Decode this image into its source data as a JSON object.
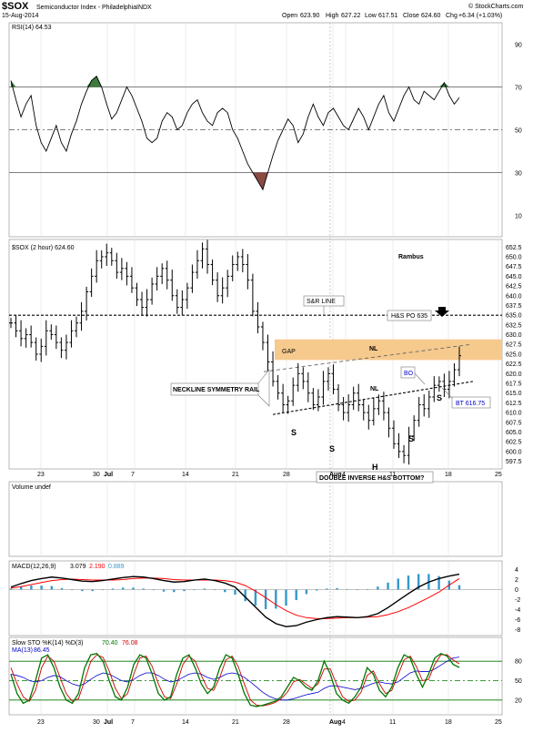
{
  "header": {
    "symbol": "$SOX",
    "name": "Semiconductor Index - Philadelphia",
    "exchange": "INDX",
    "date": "15-Aug-2014",
    "open_label": "Open",
    "open": "623.90",
    "high_label": "High",
    "high": "627.22",
    "low_label": "Low",
    "low": "617.51",
    "close_label": "Close",
    "close": "624.60",
    "chg_label": "Chg",
    "chg": "+6.34 (+1.03%)",
    "brand": "© StockCharts.com"
  },
  "colors": {
    "price": "#000000",
    "rsi_over": "#3d7a3d",
    "rsi_under": "#8a4a44",
    "gap": "#f6c98d",
    "volume": "#0000cc",
    "macd_hist": "#3399cc",
    "macd_signal": "#ff0000",
    "sto_k": "#007700",
    "sto_d": "#cc0000",
    "sto_ma": "#0000cc"
  },
  "chart_data": [
    {
      "type": "line",
      "title": "RSI(14) 64.53",
      "ylim": [
        0,
        100
      ],
      "yticks": [
        "90",
        "70",
        "50",
        "30",
        "10"
      ],
      "ref_lines": [
        70,
        50,
        30
      ],
      "values": [
        73,
        64,
        56,
        62,
        66,
        52,
        44,
        40,
        46,
        52,
        44,
        40,
        48,
        54,
        62,
        68,
        73,
        75,
        70,
        62,
        55,
        58,
        64,
        70,
        66,
        60,
        54,
        46,
        44,
        46,
        54,
        58,
        56,
        50,
        52,
        58,
        62,
        64,
        58,
        54,
        52,
        58,
        60,
        58,
        50,
        46,
        40,
        34,
        30,
        26,
        22,
        30,
        38,
        45,
        50,
        55,
        52,
        44,
        48,
        56,
        62,
        56,
        52,
        58,
        60,
        56,
        52,
        50,
        55,
        60,
        56,
        50,
        56,
        62,
        66,
        58,
        54,
        60,
        66,
        70,
        64,
        62,
        68,
        66,
        64,
        68,
        72,
        66,
        62,
        65
      ]
    },
    {
      "type": "bar",
      "title": "$SOX (2 hour) 624.60",
      "note": "Rambus",
      "ylim": [
        596,
        653.5
      ],
      "yticks": [
        "652.5",
        "650.0",
        "647.5",
        "645.0",
        "642.5",
        "640.0",
        "637.5",
        "635.0",
        "632.5",
        "630.0",
        "627.5",
        "625.0",
        "622.5",
        "620.0",
        "617.5",
        "615.0",
        "612.5",
        "610.0",
        "607.5",
        "605.0",
        "602.5",
        "600.0",
        "597.5"
      ],
      "x_labels": [
        "23",
        "30",
        "Jul",
        "7",
        "14",
        "21",
        "28",
        "Aug",
        "4",
        "11",
        "18",
        "25"
      ],
      "closes": [
        633,
        631,
        629,
        630,
        628,
        625,
        627,
        631,
        630,
        628,
        626,
        628,
        631,
        633,
        636,
        641,
        645,
        649,
        650,
        651,
        649,
        646,
        647,
        645,
        642,
        639,
        637,
        639,
        643,
        645,
        647,
        644,
        640,
        637,
        639,
        642,
        646,
        649,
        652,
        648,
        644,
        640,
        642,
        645,
        648,
        650,
        648,
        644,
        636,
        632,
        628,
        623,
        618,
        615,
        612,
        613,
        617,
        620,
        618,
        615,
        612,
        614,
        618,
        620,
        616,
        612,
        610,
        612,
        615,
        612,
        610,
        608,
        611,
        613,
        610,
        606,
        602,
        600,
        599,
        604,
        608,
        612,
        611,
        614,
        617,
        618,
        616,
        618,
        621,
        624.6
      ],
      "annotations": {
        "sr_line": "S&R LINE",
        "hs_po": "H&S PO 635",
        "gap": "GAP",
        "nl_top": "NL",
        "nl": "NL",
        "neckline": "NECKLINE SYMMETRY RAIL",
        "bo": "BO",
        "bt": "BT 616.75",
        "s1": "S",
        "s2": "S",
        "s3": "S",
        "s4": "S",
        "h": "H",
        "dbl": "DOUBLE INVERSE H&S BOTTOM?"
      },
      "levels": {
        "sr": 635,
        "gap": [
          623.5,
          628.8
        ],
        "bt": 616.75
      }
    },
    {
      "type": "bar",
      "title": "Volume undef",
      "values": []
    },
    {
      "type": "line",
      "title": "MACD(12,26,9) 3.079, 2.190, 0.889",
      "legend": [
        "MACD(12,26,9)",
        "3.079",
        "2.190",
        "0.889"
      ],
      "ylim": [
        -9,
        5
      ],
      "yticks": [
        "4",
        "2",
        "0",
        "-2",
        "-4",
        "-6",
        "-8"
      ],
      "series": [
        {
          "name": "MACD",
          "values": [
            0.5,
            1.2,
            1.8,
            2.2,
            2.5,
            2.3,
            2.0,
            1.7,
            1.6,
            1.8,
            2.1,
            2.4,
            2.6,
            2.5,
            2.2,
            1.8,
            1.5,
            1.6,
            1.9,
            2.1,
            1.8,
            1.3,
            0.5,
            -1.5,
            -3.5,
            -5.5,
            -6.8,
            -7.4,
            -7.2,
            -6.5,
            -6.0,
            -5.6,
            -5.4,
            -5.5,
            -5.6,
            -5.4,
            -4.8,
            -3.6,
            -2.2,
            -0.8,
            0.5,
            1.5,
            2.2,
            2.7,
            3.08
          ]
        },
        {
          "name": "Signal",
          "values": [
            0.3,
            0.6,
            1.0,
            1.4,
            1.8,
            2.0,
            2.1,
            2.0,
            1.9,
            1.9,
            1.9,
            2.0,
            2.2,
            2.3,
            2.3,
            2.2,
            2.0,
            1.9,
            1.9,
            1.9,
            1.9,
            1.8,
            1.5,
            0.8,
            -0.3,
            -1.6,
            -3.0,
            -4.2,
            -5.1,
            -5.6,
            -5.8,
            -5.8,
            -5.7,
            -5.6,
            -5.6,
            -5.5,
            -5.4,
            -5.0,
            -4.4,
            -3.6,
            -2.6,
            -1.6,
            -0.5,
            0.9,
            2.19
          ]
        },
        {
          "name": "Histogram",
          "values": [
            0.2,
            0.6,
            0.8,
            0.8,
            0.7,
            0.3,
            -0.1,
            -0.3,
            -0.3,
            -0.1,
            0.2,
            0.4,
            0.4,
            0.2,
            -0.1,
            -0.4,
            -0.5,
            -0.3,
            0,
            0.2,
            -0.1,
            -0.5,
            -1.0,
            -2.3,
            -3.2,
            -3.9,
            -3.8,
            -3.2,
            -2.1,
            -0.9,
            -0.2,
            0.2,
            0.3,
            0.1,
            0,
            0.1,
            0.6,
            1.4,
            2.2,
            2.8,
            3.1,
            3.1,
            2.7,
            1.8,
            0.89
          ]
        }
      ]
    },
    {
      "type": "line",
      "title": "Slow STO %K(14) %D(3) 70.40, 76.08",
      "legend": [
        "Slow STO %K(14) %D(3)",
        "70.40",
        "76.08",
        "MA(13)",
        "86.45"
      ],
      "ylim": [
        0,
        100
      ],
      "yticks": [
        "80",
        "50",
        "20"
      ],
      "ref_lines": [
        80,
        50,
        20
      ],
      "x_labels": [
        "23",
        "30",
        "Jul",
        "7",
        "14",
        "21",
        "28",
        "Aug",
        "4",
        "11",
        "18",
        "25"
      ],
      "series": [
        {
          "name": "%K",
          "values": [
            60,
            30,
            15,
            20,
            50,
            85,
            90,
            70,
            40,
            20,
            15,
            30,
            70,
            90,
            92,
            80,
            50,
            25,
            20,
            40,
            75,
            90,
            85,
            60,
            30,
            20,
            25,
            60,
            85,
            90,
            70,
            45,
            30,
            40,
            70,
            90,
            85,
            60,
            30,
            12,
            10,
            12,
            15,
            18,
            25,
            40,
            55,
            50,
            40,
            35,
            50,
            80,
            60,
            30,
            20,
            15,
            25,
            40,
            70,
            60,
            35,
            25,
            40,
            70,
            90,
            85,
            60,
            40,
            60,
            85,
            92,
            88,
            75,
            70.4
          ]
        },
        {
          "name": "%D",
          "values": [
            70,
            45,
            25,
            18,
            35,
            70,
            88,
            80,
            55,
            30,
            18,
            22,
            50,
            80,
            90,
            86,
            65,
            38,
            22,
            30,
            60,
            85,
            88,
            72,
            45,
            25,
            22,
            45,
            75,
            88,
            80,
            58,
            38,
            35,
            55,
            82,
            88,
            72,
            45,
            20,
            12,
            11,
            13,
            16,
            22,
            32,
            48,
            52,
            45,
            38,
            45,
            68,
            68,
            45,
            25,
            18,
            20,
            32,
            58,
            65,
            45,
            30,
            35,
            58,
            82,
            88,
            72,
            50,
            52,
            75,
            90,
            90,
            82,
            76.08
          ]
        },
        {
          "name": "MA(13)",
          "values": [
            60,
            58,
            55,
            50,
            48,
            50,
            55,
            58,
            56,
            50,
            45,
            42,
            45,
            52,
            58,
            62,
            60,
            55,
            50,
            48,
            52,
            58,
            62,
            62,
            58,
            52,
            48,
            50,
            55,
            60,
            62,
            60,
            55,
            52,
            55,
            60,
            62,
            60,
            55,
            48,
            40,
            32,
            26,
            22,
            20,
            20,
            22,
            25,
            28,
            30,
            32,
            38,
            42,
            42,
            40,
            38,
            36,
            38,
            42,
            46,
            48,
            46,
            45,
            48,
            55,
            62,
            65,
            64,
            64,
            68,
            74,
            80,
            85,
            86.45
          ]
        }
      ]
    }
  ]
}
